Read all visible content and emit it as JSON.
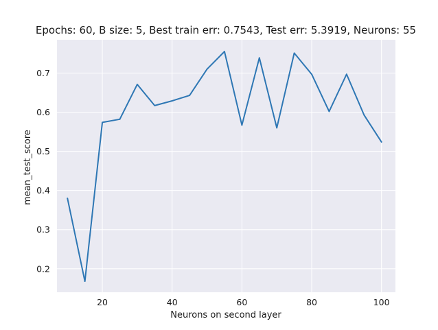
{
  "chart_data": {
    "type": "line",
    "title": "Epochs: 60, B size: 5, Best train err: 0.7543, Test err: 5.3919, Neurons: 55",
    "xlabel": "Neurons on second layer",
    "ylabel": "mean_test_score",
    "xlim": [
      7,
      104
    ],
    "ylim": [
      0.14,
      0.785
    ],
    "xticks": [
      20,
      40,
      60,
      80,
      100
    ],
    "xtick_labels": [
      "20",
      "40",
      "60",
      "80",
      "100"
    ],
    "yticks": [
      0.2,
      0.3,
      0.4,
      0.5,
      0.6,
      0.7
    ],
    "ytick_labels": [
      "0.2",
      "0.3",
      "0.4",
      "0.5",
      "0.6",
      "0.7"
    ],
    "grid": true,
    "background_color": "#eaeaf2",
    "grid_color": "#ffffff",
    "series": [
      {
        "color": "#2e77b4",
        "x": [
          10,
          15,
          20,
          25,
          30,
          35,
          40,
          45,
          50,
          55,
          60,
          65,
          70,
          75,
          80,
          85,
          90,
          95,
          100
        ],
        "values": [
          0.38,
          0.168,
          0.574,
          0.582,
          0.671,
          0.617,
          0.629,
          0.643,
          0.71,
          0.755,
          0.567,
          0.739,
          0.56,
          0.751,
          0.697,
          0.602,
          0.697,
          0.593,
          0.524
        ]
      }
    ]
  }
}
